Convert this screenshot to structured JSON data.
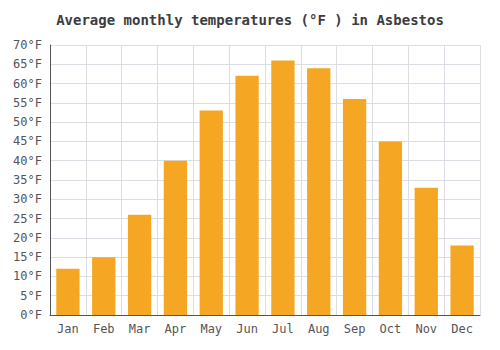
{
  "chart_data": {
    "type": "bar",
    "title": "Average monthly temperatures (°F ) in Asbestos",
    "categories": [
      "Jan",
      "Feb",
      "Mar",
      "Apr",
      "May",
      "Jun",
      "Jul",
      "Aug",
      "Sep",
      "Oct",
      "Nov",
      "Dec"
    ],
    "values": [
      12,
      15,
      26,
      40,
      53,
      62,
      66,
      64,
      56,
      45,
      33,
      18
    ],
    "color": "#F5A623",
    "ylim": [
      0,
      70
    ],
    "yticks": [
      {
        "value": 0,
        "label": "0°F"
      },
      {
        "value": 5,
        "label": "5°F"
      },
      {
        "value": 10,
        "label": "10°F"
      },
      {
        "value": 15,
        "label": "15°F"
      },
      {
        "value": 20,
        "label": "20°F"
      },
      {
        "value": 25,
        "label": "25°F"
      },
      {
        "value": 30,
        "label": "30°F"
      },
      {
        "value": 35,
        "label": "35°F"
      },
      {
        "value": 40,
        "label": "40°F"
      },
      {
        "value": 45,
        "label": "45°F"
      },
      {
        "value": 50,
        "label": "50°F"
      },
      {
        "value": 55,
        "label": "55°F"
      },
      {
        "value": 60,
        "label": "60°F"
      },
      {
        "value": 65,
        "label": "65°F"
      },
      {
        "value": 70,
        "label": "70°F"
      }
    ],
    "grid": true
  }
}
